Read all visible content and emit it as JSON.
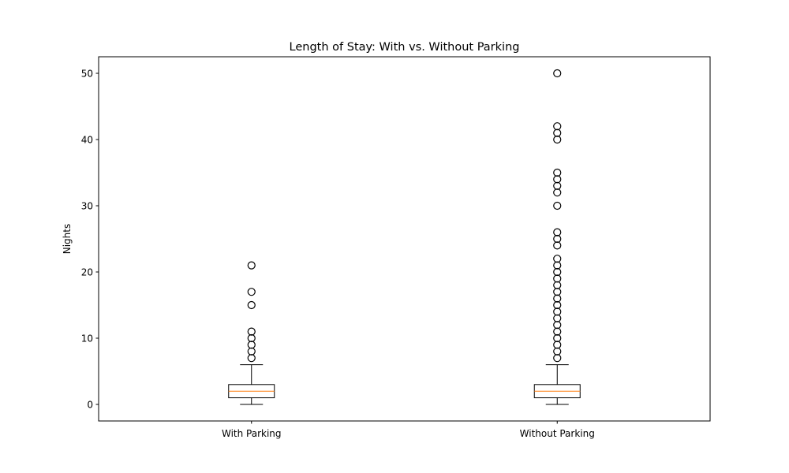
{
  "chart_data": {
    "type": "boxplot",
    "title": "Length of Stay: With vs. Without Parking",
    "xlabel": "",
    "ylabel": "Nights",
    "ylim": [
      -2.5,
      52.5
    ],
    "yticks": [
      0,
      10,
      20,
      30,
      40,
      50
    ],
    "categories": [
      "With Parking",
      "Without Parking"
    ],
    "grid": false,
    "legend": "none",
    "colors": {
      "box": "#000000",
      "median": "#ff7f0e",
      "outlier_edge": "#000000"
    },
    "series": [
      {
        "category": "With Parking",
        "whisker_low": 0,
        "q1": 1,
        "median": 2,
        "q3": 3,
        "whisker_high": 6,
        "outliers": [
          7,
          8,
          9,
          10,
          11,
          15,
          17,
          21
        ]
      },
      {
        "category": "Without Parking",
        "whisker_low": 0,
        "q1": 1,
        "median": 2,
        "q3": 3,
        "whisker_high": 6,
        "outliers": [
          7,
          8,
          9,
          10,
          11,
          12,
          13,
          14,
          15,
          16,
          17,
          18,
          19,
          20,
          21,
          22,
          24,
          25,
          26,
          30,
          32,
          33,
          34,
          35,
          40,
          41,
          42,
          50
        ]
      }
    ]
  }
}
